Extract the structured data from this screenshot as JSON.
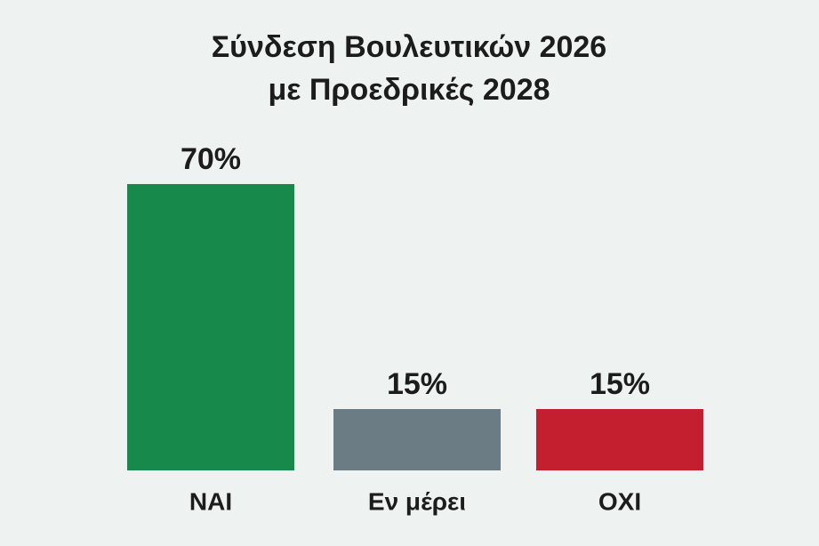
{
  "chart_data": {
    "type": "bar",
    "title": [
      "Σύνδεση Βουλευτικών 2026",
      "με Προεδρικές 2028"
    ],
    "categories": [
      "ΝΑΙ",
      "Εν μέρει",
      "ΟΧΙ"
    ],
    "values": [
      70,
      15,
      15
    ],
    "value_labels": [
      "70%",
      "15%",
      "15%"
    ],
    "colors": [
      "#17894a",
      "#6b7c84",
      "#c41f2e"
    ]
  }
}
